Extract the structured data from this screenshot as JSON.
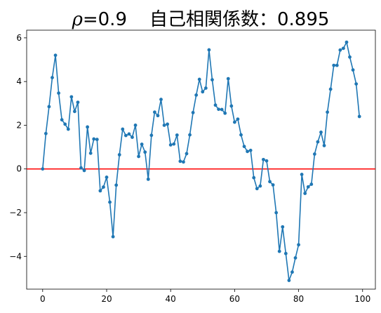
{
  "chart_data": {
    "type": "line",
    "title": {
      "symbol": "ρ",
      "rho_text": "=0.9",
      "acf_text": "自己相関係数：0.895"
    },
    "xlabel": "",
    "ylabel": "",
    "xlim": [
      -5,
      104
    ],
    "ylim": [
      -5.5,
      6.35
    ],
    "xticks": [
      0,
      20,
      40,
      60,
      80,
      100
    ],
    "xtick_labels": [
      "0",
      "20",
      "40",
      "60",
      "80",
      "100"
    ],
    "yticks": [
      -4,
      -2,
      0,
      2,
      4,
      6
    ],
    "ytick_labels": [
      "−4",
      "−2",
      "0",
      "2",
      "4",
      "6"
    ],
    "grid": false,
    "reference_line": {
      "y": 0,
      "color": "#ff0000"
    },
    "series_color": "#1f77b4",
    "x": [
      0,
      1,
      2,
      3,
      4,
      5,
      6,
      7,
      8,
      9,
      10,
      11,
      12,
      13,
      14,
      15,
      16,
      17,
      18,
      19,
      20,
      21,
      22,
      23,
      24,
      25,
      26,
      27,
      28,
      29,
      30,
      31,
      32,
      33,
      34,
      35,
      36,
      37,
      38,
      39,
      40,
      41,
      42,
      43,
      44,
      45,
      46,
      47,
      48,
      49,
      50,
      51,
      52,
      53,
      54,
      55,
      56,
      57,
      58,
      59,
      60,
      61,
      62,
      63,
      64,
      65,
      66,
      67,
      68,
      69,
      70,
      71,
      72,
      73,
      74,
      75,
      76,
      77,
      78,
      79,
      80,
      81,
      82,
      83,
      84,
      85,
      86,
      87,
      88,
      89,
      90,
      91,
      92,
      93,
      94,
      95,
      96,
      97,
      98,
      99
    ],
    "values": [
      0.0,
      1.62,
      2.85,
      4.18,
      5.2,
      3.47,
      2.25,
      2.05,
      1.82,
      3.3,
      2.63,
      3.05,
      0.05,
      -0.07,
      1.92,
      0.72,
      1.37,
      1.35,
      -1.0,
      -0.83,
      -0.38,
      -1.52,
      -3.1,
      -0.74,
      0.65,
      1.82,
      1.53,
      1.6,
      1.45,
      2.0,
      0.57,
      1.13,
      0.77,
      -0.47,
      1.54,
      2.6,
      2.44,
      3.18,
      2.0,
      2.05,
      1.1,
      1.14,
      1.55,
      0.35,
      0.32,
      0.7,
      1.56,
      2.58,
      3.38,
      4.1,
      3.53,
      3.7,
      5.45,
      4.08,
      2.92,
      2.73,
      2.72,
      2.55,
      4.13,
      2.88,
      2.14,
      2.28,
      1.56,
      1.03,
      0.8,
      0.85,
      -0.4,
      -0.9,
      -0.78,
      0.43,
      0.37,
      -0.58,
      -0.73,
      -2.0,
      -3.77,
      -2.65,
      -3.87,
      -5.1,
      -4.72,
      -4.07,
      -3.47,
      -0.25,
      -1.12,
      -0.82,
      -0.7,
      0.68,
      1.24,
      1.68,
      1.07,
      2.6,
      3.65,
      4.74,
      4.74,
      5.44,
      5.52,
      5.8,
      5.12,
      4.53,
      3.89,
      2.4
    ]
  }
}
